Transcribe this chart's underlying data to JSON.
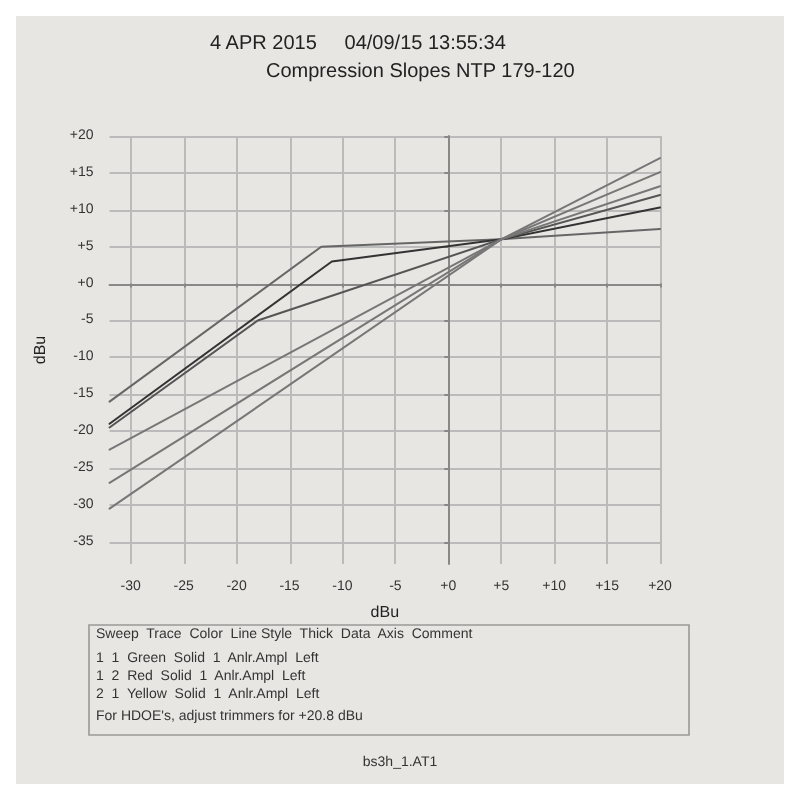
{
  "chart_data": {
    "type": "line",
    "subtitle": "4 APR 2015     04/09/15 13:55:34",
    "title": "Compression Slopes NTP 179-120",
    "xlabel": "dBu",
    "ylabel": "dBu",
    "xlim": [
      -32,
      20
    ],
    "xticks": [
      -30,
      -25,
      -20,
      -15,
      -10,
      -5,
      {
        "value": 0,
        "label": "+0"
      },
      {
        "value": 5,
        "label": "+5"
      },
      {
        "value": 10,
        "label": "+10"
      },
      {
        "value": 15,
        "label": "+15"
      },
      {
        "value": 20,
        "label": "+20"
      }
    ],
    "ylim": [
      -38,
      20
    ],
    "yticks": [
      -35,
      -30,
      -25,
      -20,
      -15,
      -10,
      -5,
      {
        "value": 0,
        "label": "+0"
      },
      {
        "value": 5,
        "label": "+5"
      },
      {
        "value": 10,
        "label": "+10"
      },
      {
        "value": 15,
        "label": "+15"
      },
      {
        "value": 20,
        "label": "+20"
      }
    ],
    "grid": true,
    "marker": "none",
    "line_style": "solid",
    "series": [
      {
        "color": "#666666",
        "x": [
          -32,
          -12,
          5,
          20
        ],
        "values": [
          -16,
          5,
          6,
          7.4
        ]
      },
      {
        "color": "#333333",
        "x": [
          -32,
          -11,
          5,
          20
        ],
        "values": [
          -19,
          3,
          6,
          10.3
        ]
      },
      {
        "color": "#555555",
        "x": [
          -32,
          -18,
          5,
          20
        ],
        "values": [
          -19.5,
          -5,
          6,
          12
        ]
      },
      {
        "color": "#777777",
        "x": [
          -32,
          5,
          20
        ],
        "values": [
          -22.5,
          6,
          13.2
        ]
      },
      {
        "color": "#777777",
        "x": [
          -32,
          5,
          20
        ],
        "values": [
          -27,
          6,
          15.1
        ]
      },
      {
        "color": "#777777",
        "x": [
          -32,
          5,
          20
        ],
        "values": [
          -30.5,
          6,
          17
        ]
      }
    ],
    "annotations": [
      "Sweep  Trace  Color  Line Style  Thick  Data  Axis  Comment",
      "1  1  Green  Solid  1  Anlr.Ampl  Left",
      "1  2  Red  Solid  1  Anlr.Ampl  Left",
      "2  1  Yellow  Solid  1  Anlr.Ampl  Left",
      "For HDOE's, adjust trimmers for +20.8 dBu",
      "bs3h_1.AT1"
    ]
  }
}
